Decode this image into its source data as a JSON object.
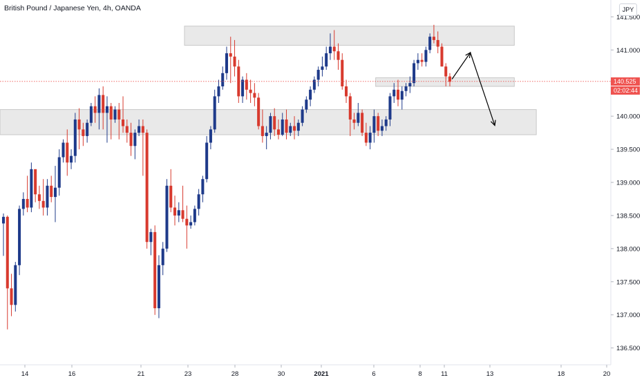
{
  "title": "British Pound / Japanese Yen, 4h, OANDA",
  "currency": "JPY",
  "current_price_label": "140.525",
  "countdown_label": "02:02:44",
  "colors": {
    "up": "#1e3a8a",
    "down": "#d83a2e",
    "bullish_faded": "#8fa3c9",
    "bearish_faded": "#e8928a",
    "zone": "#e5e5e5",
    "price_line": "#ef5350"
  },
  "chart_data": {
    "type": "candlestick",
    "title": "British Pound / Japanese Yen, 4h, OANDA",
    "ylim": [
      136.35,
      141.65
    ],
    "y_ticks": [
      "136.500",
      "137.000",
      "137.500",
      "138.000",
      "138.500",
      "139.000",
      "139.500",
      "140.000",
      "140.500",
      "141.000",
      "141.500"
    ],
    "x_ticks": [
      "14",
      "16",
      "21",
      "23",
      "28",
      "30",
      "2021",
      "6",
      "8",
      "11",
      "13",
      "18",
      "20"
    ],
    "current_price": 140.525,
    "zones": [
      {
        "name": "resistance-zone-top",
        "y_low": 141.07,
        "y_high": 141.36,
        "x_from": 0.302,
        "x_to": 0.842
      },
      {
        "name": "resistance-zone-mid",
        "y_low": 140.45,
        "y_high": 140.58,
        "x_from": 0.615,
        "x_to": 0.842
      },
      {
        "name": "support-zone",
        "y_low": 139.72,
        "y_high": 140.1,
        "x_from": 0.0,
        "x_to": 0.878
      }
    ],
    "projection_path": [
      [
        0.74,
        140.56
      ],
      [
        0.77,
        140.96
      ],
      [
        0.81,
        139.86
      ]
    ],
    "candles": [
      [
        138.38,
        138.53,
        137.89,
        138.48
      ],
      [
        138.48,
        138.5,
        136.78,
        137.4
      ],
      [
        137.4,
        137.62,
        136.98,
        137.15
      ],
      [
        137.15,
        137.8,
        137.05,
        137.75
      ],
      [
        137.75,
        138.65,
        137.6,
        138.6
      ],
      [
        138.6,
        138.85,
        138.5,
        138.75
      ],
      [
        138.75,
        139.1,
        138.55,
        138.62
      ],
      [
        138.62,
        139.3,
        138.55,
        139.2
      ],
      [
        139.2,
        139.15,
        138.7,
        138.82
      ],
      [
        138.82,
        138.95,
        138.6,
        138.72
      ],
      [
        138.72,
        139.05,
        138.5,
        138.62
      ],
      [
        138.62,
        139.05,
        138.5,
        138.95
      ],
      [
        138.95,
        139.1,
        138.7,
        138.78
      ],
      [
        138.78,
        139.25,
        138.4,
        138.92
      ],
      [
        138.92,
        139.5,
        138.8,
        139.38
      ],
      [
        139.38,
        139.65,
        139.3,
        139.6
      ],
      [
        139.6,
        139.8,
        139.1,
        139.3
      ],
      [
        139.3,
        139.5,
        139.2,
        139.4
      ],
      [
        139.4,
        140.05,
        139.3,
        139.95
      ],
      [
        139.95,
        140.12,
        139.5,
        139.8
      ],
      [
        139.8,
        139.9,
        139.55,
        139.7
      ],
      [
        139.7,
        139.95,
        139.6,
        139.9
      ],
      [
        139.9,
        140.2,
        139.85,
        140.15
      ],
      [
        140.15,
        140.3,
        139.9,
        140.05
      ],
      [
        140.05,
        140.42,
        139.8,
        140.32
      ],
      [
        140.32,
        140.45,
        139.8,
        140.05
      ],
      [
        140.05,
        140.3,
        139.6,
        140.15
      ],
      [
        140.15,
        140.2,
        139.65,
        139.95
      ],
      [
        139.95,
        140.15,
        139.9,
        140.1
      ],
      [
        140.1,
        140.2,
        139.65,
        139.95
      ],
      [
        139.95,
        140.3,
        139.75,
        139.85
      ],
      [
        139.85,
        139.95,
        139.6,
        139.75
      ],
      [
        139.75,
        139.9,
        139.4,
        139.55
      ],
      [
        139.55,
        139.8,
        139.35,
        139.75
      ],
      [
        139.75,
        139.95,
        139.7,
        139.85
      ],
      [
        139.85,
        139.95,
        139.1,
        139.75
      ],
      [
        139.75,
        139.8,
        138.0,
        138.1
      ],
      [
        138.1,
        138.3,
        137.9,
        138.25
      ],
      [
        138.25,
        138.35,
        137.0,
        137.1
      ],
      [
        137.1,
        137.9,
        136.95,
        137.75
      ],
      [
        137.75,
        138.1,
        137.6,
        138.0
      ],
      [
        138.0,
        139.05,
        137.95,
        138.95
      ],
      [
        138.95,
        139.2,
        138.55,
        138.62
      ],
      [
        138.62,
        138.8,
        138.35,
        138.5
      ],
      [
        138.5,
        138.7,
        138.4,
        138.58
      ],
      [
        138.58,
        138.95,
        138.4,
        138.45
      ],
      [
        138.45,
        138.65,
        138.0,
        138.35
      ],
      [
        138.35,
        138.5,
        138.3,
        138.4
      ],
      [
        138.4,
        138.65,
        138.35,
        138.6
      ],
      [
        138.6,
        138.9,
        138.5,
        138.82
      ],
      [
        138.82,
        139.1,
        138.7,
        139.05
      ],
      [
        139.05,
        139.7,
        139.0,
        139.6
      ],
      [
        139.6,
        139.85,
        139.5,
        139.8
      ],
      [
        139.8,
        140.4,
        139.75,
        140.3
      ],
      [
        140.3,
        140.55,
        140.2,
        140.45
      ],
      [
        140.45,
        140.75,
        140.4,
        140.65
      ],
      [
        140.65,
        141.05,
        140.55,
        140.95
      ],
      [
        140.95,
        141.2,
        140.5,
        140.9
      ],
      [
        140.9,
        141.15,
        140.6,
        140.75
      ],
      [
        140.75,
        140.85,
        140.2,
        140.3
      ],
      [
        140.3,
        140.6,
        140.2,
        140.55
      ],
      [
        140.55,
        140.65,
        140.25,
        140.4
      ],
      [
        140.4,
        140.55,
        140.2,
        140.35
      ],
      [
        140.35,
        140.5,
        140.15,
        140.28
      ],
      [
        140.28,
        140.35,
        139.8,
        139.85
      ],
      [
        139.85,
        140.1,
        139.6,
        139.7
      ],
      [
        139.7,
        139.85,
        139.5,
        139.75
      ],
      [
        139.75,
        140.05,
        139.65,
        140.0
      ],
      [
        140.0,
        140.12,
        139.7,
        139.8
      ],
      [
        139.8,
        139.95,
        139.65,
        139.72
      ],
      [
        139.72,
        140.05,
        139.7,
        139.95
      ],
      [
        139.95,
        140.1,
        139.65,
        139.75
      ],
      [
        139.75,
        139.9,
        139.7,
        139.85
      ],
      [
        139.85,
        140.0,
        139.65,
        139.78
      ],
      [
        139.78,
        139.95,
        139.7,
        139.9
      ],
      [
        139.9,
        140.15,
        139.85,
        140.1
      ],
      [
        140.1,
        140.3,
        140.05,
        140.25
      ],
      [
        140.25,
        140.45,
        140.15,
        140.4
      ],
      [
        140.4,
        140.6,
        140.35,
        140.55
      ],
      [
        140.55,
        140.75,
        140.45,
        140.7
      ],
      [
        140.7,
        140.9,
        140.6,
        140.75
      ],
      [
        140.75,
        141.05,
        140.7,
        140.95
      ],
      [
        140.95,
        141.25,
        140.85,
        141.05
      ],
      [
        141.05,
        141.3,
        140.85,
        140.98
      ],
      [
        140.98,
        141.1,
        140.7,
        140.85
      ],
      [
        140.85,
        140.95,
        140.4,
        140.45
      ],
      [
        140.45,
        140.55,
        140.2,
        140.3
      ],
      [
        140.3,
        140.35,
        139.7,
        139.95
      ],
      [
        139.95,
        140.05,
        139.8,
        139.9
      ],
      [
        139.9,
        140.2,
        139.85,
        140.05
      ],
      [
        140.05,
        140.1,
        139.7,
        139.75
      ],
      [
        139.75,
        139.9,
        139.55,
        139.6
      ],
      [
        139.6,
        139.85,
        139.5,
        139.75
      ],
      [
        139.75,
        140.1,
        139.6,
        140.0
      ],
      [
        140.0,
        140.05,
        139.7,
        139.78
      ],
      [
        139.78,
        139.95,
        139.7,
        139.85
      ],
      [
        139.85,
        140.0,
        139.78,
        139.95
      ],
      [
        139.95,
        140.35,
        139.85,
        140.3
      ],
      [
        140.3,
        140.5,
        140.2,
        140.4
      ],
      [
        140.4,
        140.55,
        140.15,
        140.25
      ],
      [
        140.25,
        140.45,
        140.1,
        140.38
      ],
      [
        140.38,
        140.5,
        140.3,
        140.45
      ],
      [
        140.45,
        140.6,
        140.35,
        140.5
      ],
      [
        140.5,
        140.85,
        140.45,
        140.8
      ],
      [
        140.8,
        140.95,
        140.7,
        140.85
      ],
      [
        140.85,
        140.95,
        140.75,
        140.82
      ],
      [
        140.82,
        141.05,
        140.75,
        141.0
      ],
      [
        141.0,
        141.25,
        140.95,
        141.2
      ],
      [
        141.2,
        141.38,
        141.1,
        141.15
      ],
      [
        141.15,
        141.28,
        140.95,
        141.05
      ],
      [
        141.05,
        141.1,
        140.75,
        140.75
      ],
      [
        140.75,
        140.8,
        140.45,
        140.6
      ],
      [
        140.6,
        140.65,
        140.45,
        140.52
      ]
    ]
  }
}
